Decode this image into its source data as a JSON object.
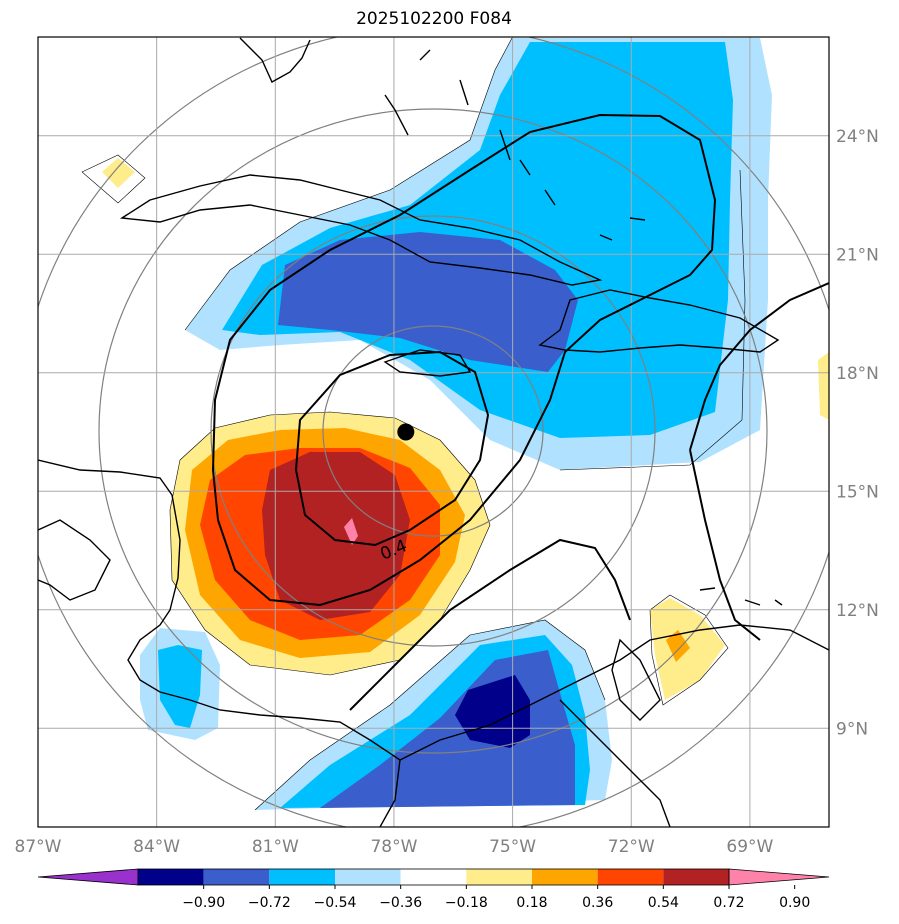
{
  "title": "2025102200 F084",
  "map": {
    "lon_range": [
      -87,
      -67
    ],
    "lat_range": [
      6.5,
      26.5
    ],
    "lon_ticks": [
      "87°W",
      "84°W",
      "81°W",
      "78°W",
      "75°W",
      "72°W",
      "69°W"
    ],
    "lon_values": [
      -87,
      -84,
      -81,
      -78,
      -75,
      -72,
      -69
    ],
    "lat_ticks": [
      "24°N",
      "21°N",
      "18°N",
      "15°N",
      "12°N",
      "9°N"
    ],
    "lat_values": [
      24,
      21,
      18,
      15,
      12,
      9
    ],
    "grid": true,
    "storm_center": {
      "lon": -77.7,
      "lat": 16.5
    },
    "contour_label": "0.4"
  },
  "colorbar": {
    "ticks": [
      "−0.90",
      "−0.72",
      "−0.54",
      "−0.36",
      "−0.18",
      "0.18",
      "0.36",
      "0.54",
      "0.72",
      "0.90"
    ],
    "colors": [
      "#9932cc",
      "#00008b",
      "#3a5fcd",
      "#00bfff",
      "#b0e2ff",
      "#ffffff",
      "#ffec8b",
      "#ffa500",
      "#ff4500",
      "#b22222",
      "#ff82ab"
    ],
    "extend": "both",
    "placement": "bottom"
  },
  "colors": {
    "grid": "#aaaaaa",
    "tick_text": "#808080",
    "coast": "#000000",
    "range_rings": "#808080"
  }
}
